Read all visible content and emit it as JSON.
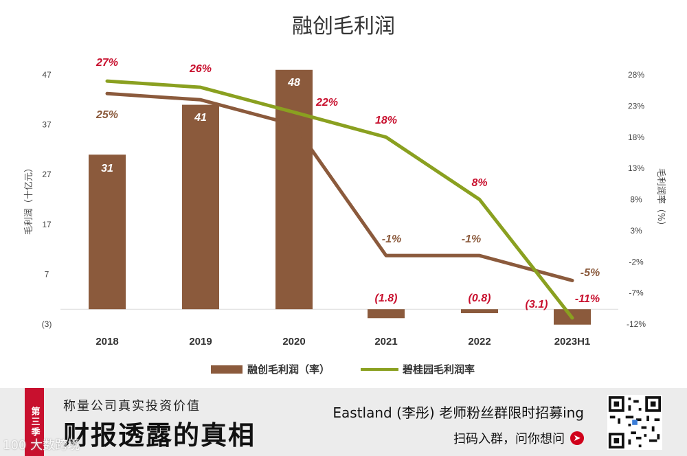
{
  "chart_data": {
    "type": "bar+line",
    "title": "融创毛利润",
    "categories": [
      "2018",
      "2019",
      "2020",
      "2021",
      "2022",
      "2023H1"
    ],
    "ylabel_left": "毛利润（十亿元）",
    "ylabel_right": "毛利润率（%）",
    "left_axis": {
      "min": -3,
      "max": 47,
      "ticks": [
        47,
        37,
        27,
        17,
        7,
        -3
      ],
      "tick_labels": [
        "47",
        "37",
        "27",
        "17",
        "7",
        "(3)"
      ]
    },
    "right_axis": {
      "min": -12,
      "max": 28,
      "ticks": [
        28,
        23,
        18,
        13,
        8,
        3,
        -2,
        -7,
        -12
      ],
      "tick_labels": [
        "28%",
        "23%",
        "18%",
        "13%",
        "8%",
        "3%",
        "-2%",
        "-7%",
        "-12%"
      ]
    },
    "series": [
      {
        "name": "融创毛利润（率）",
        "kind": "bar",
        "axis": "left",
        "color": "#8b5a3c",
        "values": [
          31,
          41,
          48,
          -1.8,
          -0.8,
          -3.1
        ],
        "labels": [
          "31",
          "41",
          "48",
          "(1.8)",
          "(0.8)",
          "(3.1)"
        ]
      },
      {
        "name": "融创毛利润率",
        "kind": "line",
        "axis": "right",
        "color": "#8b5a3c",
        "legend": false,
        "values": [
          25,
          24,
          20,
          -1,
          -1,
          -5
        ],
        "labels": [
          "25%",
          "",
          "",
          "-1%",
          "-1%",
          "-5%"
        ]
      },
      {
        "name": "碧桂园毛利润率",
        "kind": "line",
        "axis": "right",
        "color": "#8aa020",
        "values": [
          27,
          26,
          22,
          18,
          8,
          -11
        ],
        "labels": [
          "27%",
          "26%",
          "22%",
          "18%",
          "8%",
          "-11%"
        ]
      }
    ],
    "legend_position": "bottom"
  },
  "banner": {
    "season": "第三季",
    "subtitle": "称量公司真实投资价值",
    "main": "财报透露的真相",
    "right_line1": "Eastland (李彤) 老师粉丝群限时招募ing",
    "right_line2": "扫码入群，问你想问"
  },
  "watermark": "100 大数跨境",
  "colors": {
    "bar": "#8b5a3c",
    "line_sunac": "#8b5a3c",
    "line_cg": "#8aa020",
    "label_red": "#c8102e",
    "label_brown": "#8b5a3c",
    "label_white": "#ffffff"
  }
}
